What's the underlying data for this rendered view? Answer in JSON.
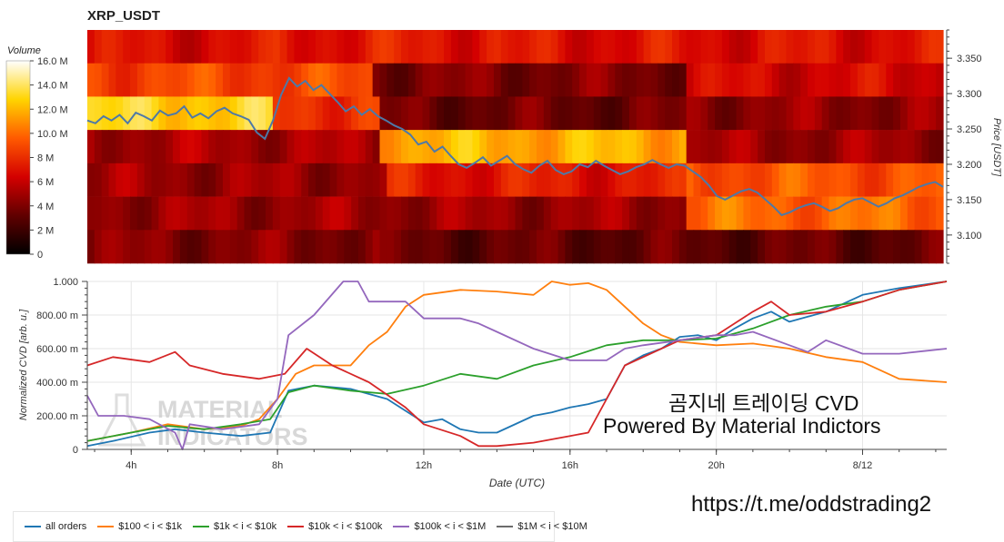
{
  "header": {
    "title": "XRP_USDT"
  },
  "colorbar": {
    "title": "Volume",
    "ticks": [
      "16.0 M",
      "14.0 M",
      "12.0 M",
      "10.0 M",
      "8 M",
      "6 M",
      "4 M",
      "2 M",
      "0"
    ]
  },
  "overlay": {
    "line1": "곰지네 트레이딩 CVD",
    "line2": "Powered By Material Indictors",
    "link": "https://t.me/oddstrading2",
    "watermark1": "MATERIAL",
    "watermark2": "INDICATORS"
  },
  "colors": {
    "all orders": "#1f77b4",
    "$100 < i < $1k": "#ff7f0e",
    "$1k < i < $10k": "#2ca02c",
    "$10k < i < $100k": "#d62728",
    "$100k < i < $1M": "#9467bd",
    "$1M < i < $10M": "#6b6b6b",
    "price": "#4e79a7"
  },
  "chart_data": [
    {
      "type": "heatmap",
      "title": "XRP_USDT",
      "ylabel": "Price [USDT]",
      "ylim": [
        3.06,
        3.39
      ],
      "y_ticks": [
        "3.350",
        "3.300",
        "3.250",
        "3.200",
        "3.150",
        "3.100"
      ],
      "x_ticks": [
        "4h",
        "8h",
        "12h",
        "16h",
        "20h",
        "8/12"
      ],
      "price_bands": [
        3.375,
        3.335,
        3.285,
        3.235,
        3.185,
        3.135,
        3.085
      ],
      "colorbar_range": [
        0,
        16000000
      ],
      "price_series": [
        3.262,
        3.258,
        3.268,
        3.262,
        3.27,
        3.258,
        3.273,
        3.268,
        3.262,
        3.276,
        3.269,
        3.272,
        3.282,
        3.266,
        3.272,
        3.265,
        3.275,
        3.28,
        3.272,
        3.268,
        3.263,
        3.245,
        3.236,
        3.262,
        3.298,
        3.322,
        3.31,
        3.318,
        3.305,
        3.312,
        3.3,
        3.288,
        3.275,
        3.282,
        3.27,
        3.278,
        3.268,
        3.262,
        3.255,
        3.25,
        3.242,
        3.228,
        3.232,
        3.218,
        3.225,
        3.212,
        3.2,
        3.195,
        3.202,
        3.21,
        3.198,
        3.205,
        3.212,
        3.2,
        3.193,
        3.188,
        3.198,
        3.205,
        3.192,
        3.186,
        3.19,
        3.2,
        3.196,
        3.205,
        3.198,
        3.192,
        3.186,
        3.19,
        3.196,
        3.2,
        3.206,
        3.2,
        3.195,
        3.2,
        3.198,
        3.19,
        3.182,
        3.17,
        3.155,
        3.15,
        3.156,
        3.162,
        3.165,
        3.16,
        3.15,
        3.14,
        3.128,
        3.132,
        3.138,
        3.142,
        3.145,
        3.14,
        3.134,
        3.138,
        3.145,
        3.15,
        3.152,
        3.146,
        3.14,
        3.145,
        3.152,
        3.156,
        3.162,
        3.168,
        3.172,
        3.175,
        3.168
      ]
    },
    {
      "type": "line",
      "xlabel": "Date (UTC)",
      "ylabel": "Normalized CVD [arb. u.]",
      "ylim": [
        0,
        1.0
      ],
      "y_ticks": [
        "1.000",
        "800.00 m",
        "600.00 m",
        "400.00 m",
        "200.00 m",
        "0"
      ],
      "x_ticks": [
        "4h",
        "8h",
        "12h",
        "16h",
        "20h",
        "8/12"
      ],
      "x_range_hours": [
        2.8,
        26.3
      ],
      "x_tick_hours": [
        4,
        8,
        12,
        16,
        20,
        24
      ],
      "series": [
        {
          "name": "all orders",
          "x": [
            2.8,
            3.5,
            4.5,
            5.2,
            6,
            7,
            7.8,
            8.3,
            9,
            10,
            11,
            12,
            12.5,
            13,
            13.5,
            14,
            15,
            15.5,
            16,
            16.5,
            17,
            17.5,
            18,
            18.5,
            19,
            19.5,
            20,
            20.5,
            21,
            21.5,
            22,
            23,
            24,
            25,
            26.3
          ],
          "values": [
            0.02,
            0.05,
            0.1,
            0.12,
            0.1,
            0.08,
            0.1,
            0.35,
            0.38,
            0.36,
            0.3,
            0.16,
            0.18,
            0.12,
            0.1,
            0.1,
            0.2,
            0.22,
            0.25,
            0.27,
            0.3,
            0.5,
            0.56,
            0.6,
            0.67,
            0.68,
            0.65,
            0.72,
            0.78,
            0.82,
            0.76,
            0.82,
            0.92,
            0.96,
            1.0
          ]
        },
        {
          "name": "$100 < i < $1k",
          "x": [
            2.8,
            4,
            5,
            6,
            7,
            7.5,
            8,
            8.5,
            9,
            10,
            10.5,
            11,
            11.5,
            12,
            13,
            14,
            15,
            15.5,
            16,
            16.5,
            17,
            17.5,
            18,
            18.5,
            19,
            20,
            21,
            22,
            23,
            24,
            25,
            26.3
          ],
          "values": [
            0.05,
            0.1,
            0.15,
            0.12,
            0.14,
            0.18,
            0.3,
            0.45,
            0.5,
            0.5,
            0.62,
            0.7,
            0.85,
            0.92,
            0.95,
            0.94,
            0.92,
            1.0,
            0.98,
            0.99,
            0.95,
            0.85,
            0.75,
            0.68,
            0.64,
            0.62,
            0.63,
            0.6,
            0.55,
            0.52,
            0.42,
            0.4
          ]
        },
        {
          "name": "$1k < i < $10k",
          "x": [
            2.8,
            4,
            5,
            6,
            7,
            7.8,
            8.3,
            9,
            10,
            11,
            12,
            13,
            14,
            15,
            16,
            17,
            18,
            19,
            20,
            21,
            22,
            23,
            24,
            25,
            26.3
          ],
          "values": [
            0.05,
            0.1,
            0.14,
            0.12,
            0.15,
            0.18,
            0.34,
            0.38,
            0.35,
            0.33,
            0.38,
            0.45,
            0.42,
            0.5,
            0.55,
            0.62,
            0.65,
            0.65,
            0.66,
            0.72,
            0.8,
            0.85,
            0.88,
            0.95,
            1.0
          ]
        },
        {
          "name": "$10k < i < $100k",
          "x": [
            2.8,
            3.5,
            4.5,
            5.2,
            5.6,
            6.5,
            7.5,
            8.2,
            8.8,
            9.5,
            10.5,
            11.5,
            12,
            13,
            13.5,
            14,
            15,
            16,
            16.5,
            17,
            17.5,
            18,
            19,
            20,
            20.5,
            21,
            21.5,
            22,
            23,
            24,
            25,
            26.3
          ],
          "values": [
            0.5,
            0.55,
            0.52,
            0.58,
            0.5,
            0.45,
            0.42,
            0.45,
            0.6,
            0.5,
            0.4,
            0.25,
            0.15,
            0.08,
            0.02,
            0.02,
            0.04,
            0.08,
            0.1,
            0.3,
            0.5,
            0.55,
            0.65,
            0.68,
            0.75,
            0.82,
            0.88,
            0.8,
            0.82,
            0.88,
            0.95,
            1.0
          ]
        },
        {
          "name": "$100k < i < $1M",
          "x": [
            2.8,
            3.1,
            3.8,
            4.5,
            5.2,
            5.4,
            5.6,
            6.5,
            7.5,
            8,
            8.3,
            9,
            9.8,
            10.2,
            10.5,
            11,
            11.5,
            12,
            12.5,
            13,
            13.5,
            14,
            15,
            16,
            16.5,
            17,
            17.5,
            18,
            19,
            20,
            20.5,
            21,
            22,
            22.5,
            23,
            24,
            25,
            26.3
          ],
          "values": [
            0.32,
            0.2,
            0.2,
            0.18,
            0.1,
            0.0,
            0.15,
            0.12,
            0.15,
            0.3,
            0.68,
            0.8,
            1.0,
            1.0,
            0.88,
            0.88,
            0.88,
            0.78,
            0.78,
            0.78,
            0.75,
            0.7,
            0.6,
            0.53,
            0.53,
            0.53,
            0.6,
            0.62,
            0.65,
            0.68,
            0.68,
            0.7,
            0.62,
            0.58,
            0.65,
            0.57,
            0.57,
            0.6
          ]
        },
        {
          "name": "$1M < i < $10M",
          "x": [],
          "values": []
        }
      ]
    }
  ]
}
